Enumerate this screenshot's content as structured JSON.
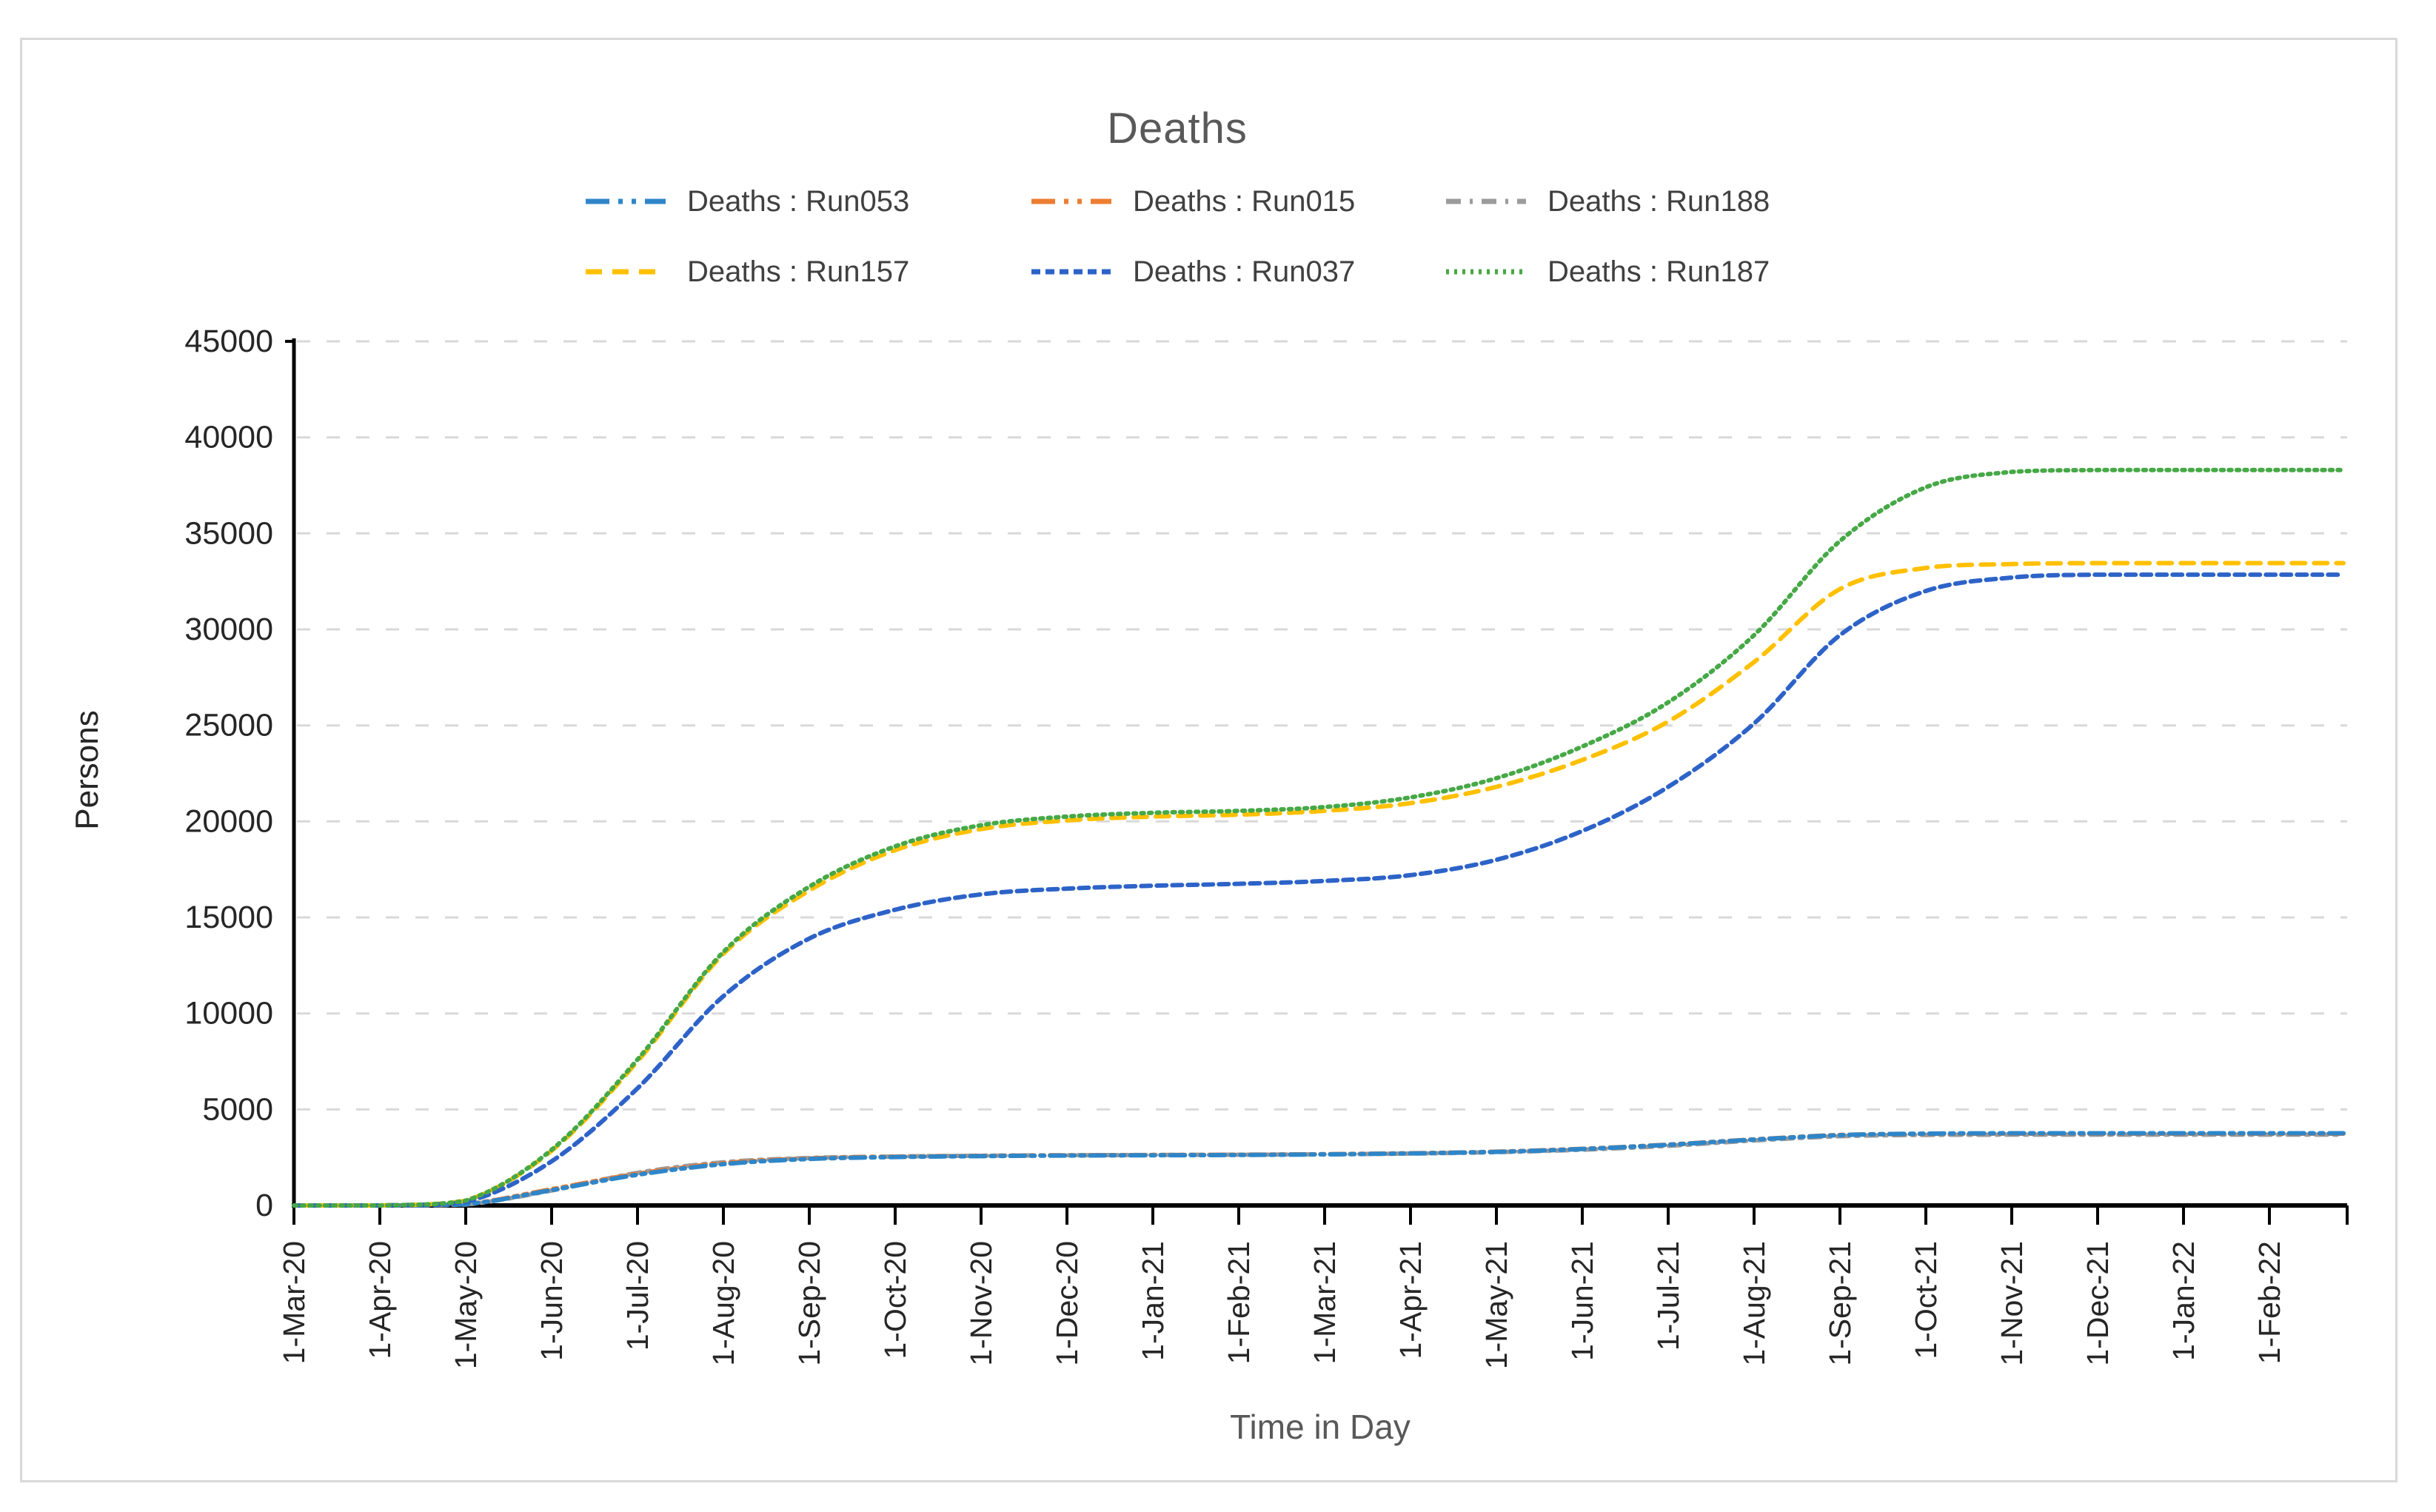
{
  "header": {
    "title": "Deaths"
  },
  "axes": {
    "y_title": "Persons",
    "x_title": "Time in Day"
  },
  "chart_data": {
    "type": "line",
    "title": "Deaths",
    "xlabel": "Time in Day",
    "ylabel": "Persons",
    "ylim": [
      0,
      45000
    ],
    "ytick_step": 5000,
    "ytick_labels": [
      "0",
      "5000",
      "10000",
      "15000",
      "20000",
      "25000",
      "30000",
      "35000",
      "40000",
      "45000"
    ],
    "grid": "horizontal-dashed",
    "gridline_color": "#d9d9d9",
    "axis_color": "#000000",
    "tick_label_color": "#262626",
    "title_color": "#595959",
    "legend_text_color": "#404040",
    "legend_position": "top-center-two-rows",
    "categories": [
      "1-Mar-20",
      "1-Apr-20",
      "1-May-20",
      "1-Jun-20",
      "1-Jul-20",
      "1-Aug-20",
      "1-Sep-20",
      "1-Oct-20",
      "1-Nov-20",
      "1-Dec-20",
      "1-Jan-21",
      "1-Feb-21",
      "1-Mar-21",
      "1-Apr-21",
      "1-May-21",
      "1-Jun-21",
      "1-Jul-21",
      "1-Aug-21",
      "1-Sep-21",
      "1-Oct-21",
      "1-Nov-21",
      "1-Dec-21",
      "1-Jan-22",
      "1-Feb-22"
    ],
    "series": [
      {
        "key": "run053",
        "name": "Deaths : Run053",
        "color": "#2e86c9",
        "dash": "20 8 5 8 5 8",
        "legend_dash": "32 12 6 12 6 12",
        "width": 6,
        "values": [
          0,
          0,
          60,
          800,
          1600,
          2150,
          2420,
          2520,
          2570,
          2600,
          2615,
          2630,
          2660,
          2710,
          2790,
          2940,
          3160,
          3430,
          3660,
          3740,
          3760,
          3760,
          3760,
          3760
        ]
      },
      {
        "key": "run015",
        "name": "Deaths : Run015",
        "color": "#ed7d31",
        "dash": "20 8 5 8 5 8",
        "legend_dash": "32 12 6 12 6 12",
        "width": 6,
        "values": [
          0,
          0,
          70,
          850,
          1650,
          2200,
          2450,
          2540,
          2580,
          2610,
          2625,
          2640,
          2670,
          2720,
          2800,
          2950,
          3170,
          3440,
          3670,
          3730,
          3740,
          3740,
          3740,
          3740
        ]
      },
      {
        "key": "run188",
        "name": "Deaths : Run188",
        "color": "#9b9b9b",
        "dash": "16 9 4 9",
        "legend_dash": "20 12 4 12",
        "width": 6,
        "values": [
          0,
          0,
          50,
          780,
          1700,
          2250,
          2470,
          2550,
          2590,
          2615,
          2628,
          2642,
          2665,
          2705,
          2775,
          2905,
          3105,
          3385,
          3605,
          3675,
          3685,
          3685,
          3685,
          3685
        ]
      },
      {
        "key": "run157",
        "name": "Deaths : Run157",
        "color": "#ffc000",
        "dash": "18 12",
        "legend_dash": "22 14",
        "width": 6,
        "values": [
          0,
          0,
          250,
          2850,
          7500,
          13100,
          16400,
          18500,
          19600,
          20050,
          20250,
          20350,
          20550,
          20950,
          21800,
          23200,
          25200,
          28300,
          32100,
          33200,
          33400,
          33450,
          33450,
          33450
        ]
      },
      {
        "key": "run037",
        "name": "Deaths : Run037",
        "color": "#2d63c8",
        "dash": "13 8",
        "legend_dash": "12 7",
        "width": 6,
        "values": [
          0,
          0,
          180,
          2300,
          6100,
          10900,
          13900,
          15400,
          16200,
          16500,
          16650,
          16750,
          16900,
          17200,
          18000,
          19500,
          21800,
          25100,
          29700,
          32000,
          32700,
          32850,
          32850,
          32850
        ]
      },
      {
        "key": "run187",
        "name": "Deaths : Run187",
        "color": "#46a846",
        "dash": "3.5 7",
        "legend_dash": "4 7",
        "width": 6,
        "values": [
          0,
          0,
          250,
          2900,
          7600,
          13200,
          16600,
          18700,
          19800,
          20250,
          20450,
          20550,
          20750,
          21250,
          22250,
          23900,
          26200,
          29700,
          34600,
          37400,
          38200,
          38300,
          38300,
          38300
        ]
      }
    ],
    "draw_order": [
      "run188",
      "run015",
      "run053",
      "run157",
      "run037",
      "run187"
    ],
    "legend_rows": [
      [
        "run053",
        "run015",
        "run188"
      ],
      [
        "run157",
        "run037",
        "run187"
      ]
    ]
  }
}
